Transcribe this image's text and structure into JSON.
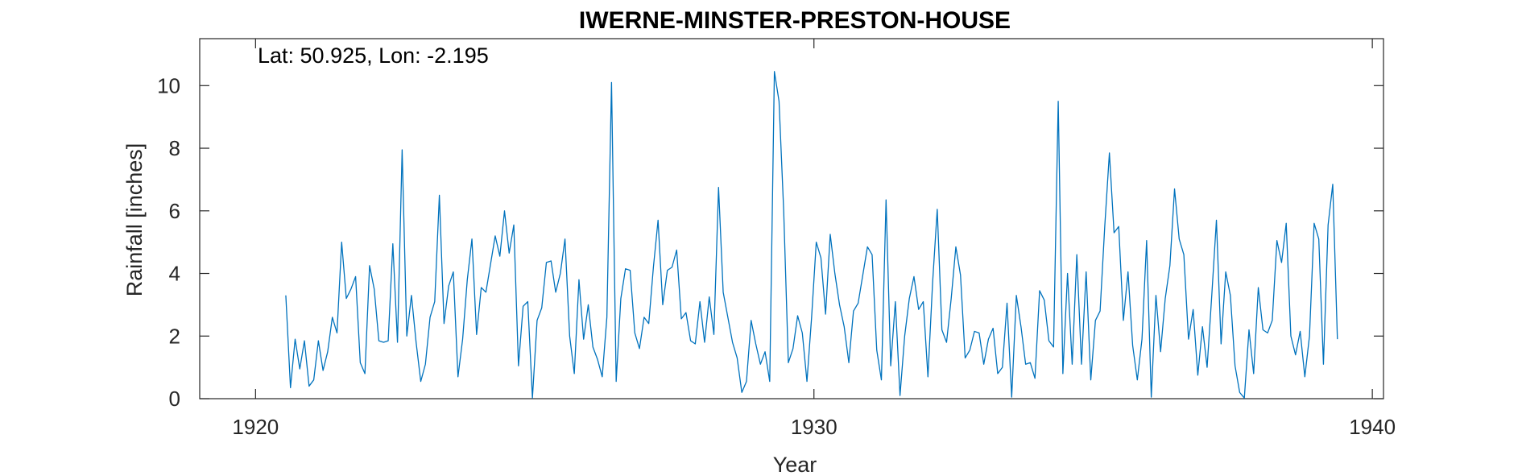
{
  "chart_data": {
    "type": "line",
    "title": "IWERNE-MINSTER-PRESTON-HOUSE",
    "xlabel": "Year",
    "ylabel": "Rainfall [inches]",
    "annotation": "Lat: 50.925, Lon: -2.195",
    "xlim": [
      1919,
      1940.2
    ],
    "ylim": [
      0,
      11.5
    ],
    "xticks": [
      1920,
      1930,
      1940
    ],
    "yticks": [
      0,
      2,
      4,
      6,
      8,
      10
    ],
    "grid": false,
    "line_color": "#0072BD",
    "series": [
      {
        "x_start": 1920.542,
        "step": 0.08333,
        "values": [
          3.3,
          0.35,
          1.9,
          0.95,
          1.85,
          0.4,
          0.6,
          1.85,
          0.9,
          1.5,
          2.6,
          2.1,
          5.0,
          3.2,
          3.5,
          3.9,
          1.15,
          0.8,
          4.25,
          3.5,
          1.85,
          1.8,
          1.85,
          4.95,
          1.8,
          7.95,
          2.0,
          3.3,
          1.8,
          0.55,
          1.1,
          2.6,
          3.1,
          6.5,
          2.4,
          3.6,
          4.05,
          0.7,
          1.9,
          3.8,
          5.1,
          2.05,
          3.55,
          3.4,
          4.3,
          5.2,
          4.55,
          6.0,
          4.65,
          5.55,
          1.05,
          2.95,
          3.1,
          0.02,
          2.5,
          2.9,
          4.35,
          4.4,
          3.4,
          4.0,
          5.1,
          2.0,
          0.8,
          3.8,
          1.9,
          3.0,
          1.65,
          1.25,
          0.7,
          2.6,
          10.1,
          0.55,
          3.2,
          4.15,
          4.1,
          2.1,
          1.6,
          2.6,
          2.4,
          4.2,
          5.7,
          3.0,
          4.1,
          4.2,
          4.75,
          2.55,
          2.75,
          1.85,
          1.75,
          3.1,
          1.8,
          3.25,
          2.05,
          6.75,
          3.4,
          2.6,
          1.8,
          1.3,
          0.2,
          0.55,
          2.5,
          1.75,
          1.1,
          1.5,
          0.55,
          10.45,
          9.5,
          6.0,
          1.15,
          1.6,
          2.65,
          2.1,
          0.55,
          2.6,
          5.0,
          4.5,
          2.7,
          5.25,
          4.0,
          3.0,
          2.3,
          1.15,
          2.8,
          3.05,
          3.95,
          4.85,
          4.6,
          1.55,
          0.6,
          6.35,
          1.05,
          3.1,
          0.1,
          2.0,
          3.2,
          3.9,
          2.85,
          3.1,
          0.7,
          3.7,
          6.05,
          2.2,
          1.8,
          3.2,
          4.85,
          3.95,
          1.3,
          1.55,
          2.15,
          2.1,
          1.1,
          1.9,
          2.25,
          0.8,
          1.0,
          3.05,
          0.05,
          3.3,
          2.3,
          1.1,
          1.15,
          0.65,
          3.45,
          3.15,
          1.85,
          1.65,
          9.5,
          0.8,
          4.0,
          1.1,
          4.6,
          1.1,
          4.05,
          0.6,
          2.5,
          2.8,
          5.5,
          7.85,
          5.3,
          5.5,
          2.5,
          4.05,
          1.7,
          0.6,
          1.9,
          5.05,
          0.05,
          3.3,
          1.5,
          3.2,
          4.25,
          6.7,
          5.1,
          4.6,
          1.9,
          2.85,
          0.75,
          2.3,
          1.0,
          3.3,
          5.7,
          1.75,
          4.05,
          3.3,
          1.05,
          0.2,
          0.02,
          2.2,
          0.8,
          3.55,
          2.2,
          2.1,
          2.5,
          5.05,
          4.35,
          5.6,
          2.0,
          1.4,
          2.15,
          0.7,
          2.0,
          5.6,
          5.1,
          1.1,
          5.55,
          6.85,
          1.9
        ]
      }
    ]
  }
}
